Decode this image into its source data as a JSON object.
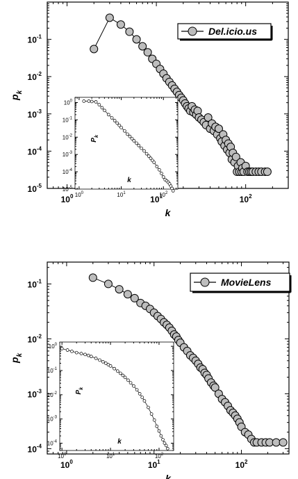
{
  "chart_data": [
    {
      "type": "scatter",
      "xlabel": "k",
      "ylabel": "p",
      "ylabel_sub": "k",
      "xscale": "log",
      "yscale": "log",
      "xlim": [
        0.6,
        300
      ],
      "ylim": [
        1e-05,
        1
      ],
      "x_tick_labels": [
        {
          "value": 1,
          "base": "10",
          "exp": "0"
        },
        {
          "value": 10,
          "base": "10",
          "exp": "1"
        },
        {
          "value": 100,
          "base": "10",
          "exp": "2"
        }
      ],
      "y_tick_labels": [
        {
          "value": 1e-05,
          "base": "10",
          "exp": "-5"
        },
        {
          "value": 0.0001,
          "base": "10",
          "exp": "-4"
        },
        {
          "value": 0.001,
          "base": "10",
          "exp": "-3"
        },
        {
          "value": 0.01,
          "base": "10",
          "exp": "-2"
        },
        {
          "value": 0.1,
          "base": "10",
          "exp": "-1"
        }
      ],
      "legend": {
        "label": "Del.icio.us",
        "position": "top-right"
      },
      "series": [
        {
          "name": "Del.icio.us",
          "x": [
            2,
            3,
            4,
            5,
            6,
            7,
            8,
            9,
            10,
            11,
            12,
            13,
            14,
            15,
            16,
            17,
            18,
            19,
            20,
            21,
            22,
            23,
            24,
            25,
            26,
            27,
            28,
            29,
            30,
            32,
            34,
            36,
            38,
            40,
            42,
            44,
            46,
            48,
            50,
            52,
            54,
            56,
            58,
            60,
            62,
            64,
            66,
            68,
            70,
            72,
            75,
            78,
            80,
            82,
            85,
            88,
            90,
            92,
            95,
            100,
            105,
            110,
            115,
            120,
            130,
            140,
            150,
            165,
            175
          ],
          "y": [
            0.055,
            0.38,
            0.25,
            0.16,
            0.1,
            0.065,
            0.045,
            0.03,
            0.022,
            0.016,
            0.012,
            0.009,
            0.0072,
            0.0058,
            0.0047,
            0.0039,
            0.0032,
            0.0027,
            0.0023,
            0.0019,
            0.0016,
            0.0014,
            0.0012,
            0.0016,
            0.0011,
            0.0013,
            0.00095,
            0.0012,
            0.0008,
            0.0007,
            0.0006,
            0.0005,
            0.0008,
            0.0004,
            0.00055,
            0.00035,
            0.00045,
            0.00028,
            0.0004,
            0.00022,
            0.00018,
            0.00028,
            0.00014,
            0.0002,
            0.00011,
            0.00016,
            9e-05,
            0.00013,
            6e-05,
            9e-05,
            5e-05,
            7e-05,
            2.8e-05,
            4e-05,
            2.8e-05,
            5e-05,
            2.8e-05,
            3.5e-05,
            2.8e-05,
            4e-05,
            2.8e-05,
            2.8e-05,
            2.8e-05,
            2.8e-05,
            2.8e-05,
            2.8e-05,
            2.8e-05,
            2.8e-05,
            2.8e-05
          ]
        }
      ],
      "inset": {
        "type": "line",
        "xlabel": "k",
        "ylabel": "P",
        "ylabel_sub": "k",
        "xscale": "log",
        "yscale": "log",
        "xlim": [
          0.8,
          220
        ],
        "ylim": [
          1e-05,
          2
        ],
        "x_tick_labels": [
          {
            "value": 1,
            "base": "10",
            "exp": "0"
          },
          {
            "value": 10,
            "base": "10",
            "exp": "1"
          },
          {
            "value": 100,
            "base": "10",
            "exp": "2"
          }
        ],
        "y_tick_labels": [
          {
            "value": 1e-05,
            "base": "10",
            "exp": "-5"
          },
          {
            "value": 0.0001,
            "base": "10",
            "exp": "-4"
          },
          {
            "value": 0.001,
            "base": "10",
            "exp": "-3"
          },
          {
            "value": 0.01,
            "base": "10",
            "exp": "-2"
          },
          {
            "value": 0.1,
            "base": "10",
            "exp": "-1"
          },
          {
            "value": 1,
            "base": "10",
            "exp": "0"
          }
        ],
        "series": [
          {
            "name": "",
            "x": [
              1.3,
              1.7,
              2,
              2.5,
              3,
              3.5,
              4,
              5,
              6,
              7,
              8,
              9,
              10,
              12,
              14,
              16,
              18,
              20,
              23,
              26,
              30,
              35,
              40,
              45,
              50,
              55,
              60,
              70,
              80,
              90,
              100,
              110,
              120,
              130,
              140,
              150,
              160,
              170
            ],
            "y": [
              1.2,
              1.2,
              1.15,
              1.1,
              0.75,
              0.5,
              0.35,
              0.2,
              0.13,
              0.09,
              0.065,
              0.048,
              0.036,
              0.023,
              0.015,
              0.011,
              0.0082,
              0.0062,
              0.0045,
              0.0033,
              0.0023,
              0.0016,
              0.0011,
              0.0008,
              0.0006,
              0.00045,
              0.00035,
              0.0002,
              0.00013,
              8e-05,
              5e-05,
              3.5e-05,
              3e-05,
              2.5e-05,
              2e-05,
              1.5e-05,
              1.1e-05,
              8e-06
            ]
          }
        ]
      }
    },
    {
      "type": "scatter",
      "xlabel": "k",
      "ylabel": "p",
      "ylabel_sub": "k",
      "xscale": "log",
      "yscale": "log",
      "xlim": [
        0.6,
        350
      ],
      "ylim": [
        8e-05,
        0.25
      ],
      "x_tick_labels": [
        {
          "value": 1,
          "base": "10",
          "exp": "0"
        },
        {
          "value": 10,
          "base": "10",
          "exp": "1"
        },
        {
          "value": 100,
          "base": "10",
          "exp": "2"
        }
      ],
      "y_tick_labels": [
        {
          "value": 0.0001,
          "base": "10",
          "exp": "-4"
        },
        {
          "value": 0.001,
          "base": "10",
          "exp": "-3"
        },
        {
          "value": 0.01,
          "base": "10",
          "exp": "-2"
        },
        {
          "value": 0.1,
          "base": "10",
          "exp": "-1"
        }
      ],
      "legend": {
        "label": "MovieLens",
        "position": "top-right"
      },
      "series": [
        {
          "name": "MovieLens",
          "x": [
            2,
            3,
            4,
            5,
            6,
            7,
            8,
            9,
            10,
            11,
            12,
            13,
            14,
            15,
            16,
            17,
            18,
            19,
            20,
            22,
            24,
            26,
            28,
            30,
            32,
            34,
            36,
            38,
            40,
            42,
            45,
            48,
            50,
            55,
            60,
            65,
            70,
            75,
            80,
            85,
            90,
            95,
            100,
            110,
            120,
            130,
            140,
            150,
            170,
            190,
            210,
            250,
            300
          ],
          "y": [
            0.13,
            0.1,
            0.08,
            0.065,
            0.055,
            0.045,
            0.04,
            0.035,
            0.03,
            0.026,
            0.023,
            0.02,
            0.018,
            0.016,
            0.014,
            0.012,
            0.011,
            0.0095,
            0.0085,
            0.007,
            0.006,
            0.005,
            0.0045,
            0.004,
            0.0035,
            0.003,
            0.0028,
            0.0024,
            0.0022,
            0.0019,
            0.0016,
            0.0014,
            0.0013,
            0.001,
            0.0008,
            0.0007,
            0.0006,
            0.0005,
            0.00045,
            0.0004,
            0.00035,
            0.0003,
            0.00025,
            0.0002,
            0.00018,
            0.00015,
            0.00013,
            0.00013,
            0.00013,
            0.00013,
            0.00013,
            0.00013,
            0.00013
          ]
        }
      ],
      "inset": {
        "type": "line",
        "xlabel": "k",
        "ylabel": "P",
        "ylabel_sub": "k",
        "xscale": "log",
        "yscale": "log",
        "xlim": [
          0.9,
          200
        ],
        "ylim": [
          5e-05,
          1.5
        ],
        "x_tick_labels": [
          {
            "value": 1,
            "base": "10",
            "exp": "0"
          },
          {
            "value": 10,
            "base": "10",
            "exp": "1"
          },
          {
            "value": 100,
            "base": "10",
            "exp": "2"
          }
        ],
        "y_tick_labels": [
          {
            "value": 0.0001,
            "base": "10",
            "exp": "-4"
          },
          {
            "value": 0.001,
            "base": "10",
            "exp": "-3"
          },
          {
            "value": 0.01,
            "base": "10",
            "exp": "-2"
          },
          {
            "value": 0.1,
            "base": "10",
            "exp": "-1"
          },
          {
            "value": 1,
            "base": "10",
            "exp": "0"
          }
        ],
        "series": [
          {
            "name": "",
            "x": [
              1,
              1.3,
              1.6,
              2,
              2.5,
              3,
              3.5,
              4,
              5,
              6,
              7,
              8,
              9,
              10,
              12,
              14,
              16,
              18,
              20,
              23,
              26,
              30,
              35,
              40,
              45,
              50,
              60,
              70,
              80,
              90,
              100,
              110,
              120,
              130,
              140,
              150
            ],
            "y": [
              0.8,
              0.7,
              0.62,
              0.55,
              0.5,
              0.46,
              0.42,
              0.38,
              0.32,
              0.27,
              0.23,
              0.2,
              0.175,
              0.155,
              0.12,
              0.095,
              0.077,
              0.063,
              0.052,
              0.04,
              0.031,
              0.023,
              0.016,
              0.011,
              0.0078,
              0.0056,
              0.003,
              0.0016,
              0.0009,
              0.0005,
              0.00032,
              0.0002,
              0.00014,
              0.0001,
              8e-05,
              6e-05
            ]
          }
        ]
      }
    }
  ]
}
